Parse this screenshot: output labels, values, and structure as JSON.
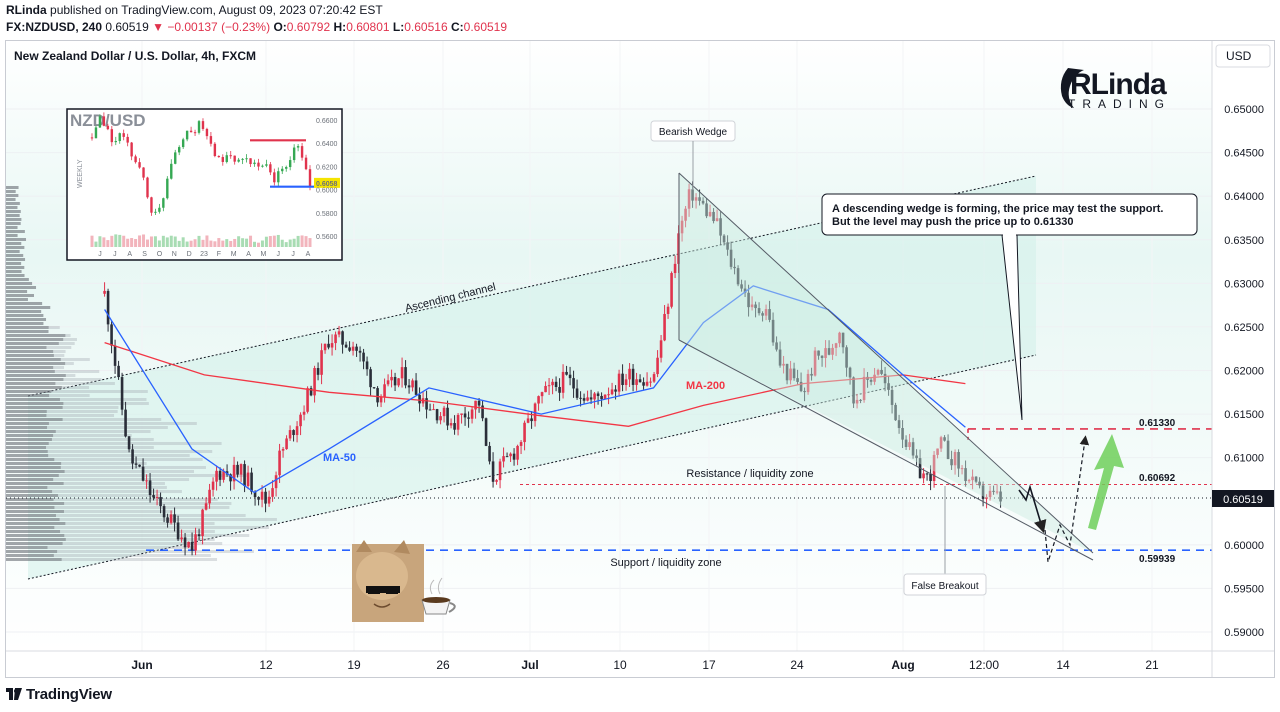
{
  "header": {
    "publisher": "RLinda",
    "published_text": "published on TradingView.com, August 09, 2023 07:20:42 EST",
    "symbol": "FX:NZDUSD, 240",
    "last": "0.60519",
    "change_arrow": "▼",
    "change": "−0.00137 (−0.23%)",
    "o_label": "O:",
    "o": "0.60792",
    "h_label": "H:",
    "h": "0.60801",
    "l_label": "L:",
    "l": "0.60516",
    "c_label": "C:",
    "c": "0.60519"
  },
  "footer": {
    "brand": "TradingView"
  },
  "colors": {
    "bull": "#e0334d",
    "bear": "#2a2e39",
    "ma50": "#2962ff",
    "ma200": "#f23645",
    "channel_fill": "#d5f2ec",
    "support": "#2962ff",
    "resistance": "#e0334d",
    "arrow": "#6ecf5a"
  },
  "chart_data": {
    "type": "candlestick",
    "title": "New Zealand Dollar / U.S. Dollar, 4h, FXCM",
    "currency_button": "USD",
    "x_tick_labels": [
      "Jun",
      "12",
      "19",
      "26",
      "Jul",
      "10",
      "17",
      "24",
      "Aug",
      "12:00",
      "14",
      "21"
    ],
    "y_tick_labels": [
      "0.65000",
      "0.64500",
      "0.64000",
      "0.63500",
      "0.63000",
      "0.62500",
      "0.62000",
      "0.61500",
      "0.61000",
      "0.60000",
      "0.59500",
      "0.59000"
    ],
    "ylim": [
      0.587,
      0.6535
    ],
    "price_marker": "0.60519",
    "close_path": [
      {
        "d": "May 29",
        "v": 0.6288
      },
      {
        "d": "May 31",
        "v": 0.61
      },
      {
        "d": "Jun 1",
        "v": 0.6078
      },
      {
        "d": "Jun 2",
        "v": 0.605
      },
      {
        "d": "Jun 5",
        "v": 0.5997
      },
      {
        "d": "Jun 6",
        "v": 0.6035
      },
      {
        "d": "Jun 7",
        "v": 0.6084
      },
      {
        "d": "Jun 9",
        "v": 0.6082
      },
      {
        "d": "Jun 11",
        "v": 0.6048
      },
      {
        "d": "Jun 12",
        "v": 0.61
      },
      {
        "d": "Jun 14",
        "v": 0.616
      },
      {
        "d": "Jun 16",
        "v": 0.6238
      },
      {
        "d": "Jun 18",
        "v": 0.623
      },
      {
        "d": "Jun 20",
        "v": 0.617
      },
      {
        "d": "Jun 22",
        "v": 0.6195
      },
      {
        "d": "Jun 24",
        "v": 0.616
      },
      {
        "d": "Jun 26",
        "v": 0.614
      },
      {
        "d": "Jun 28",
        "v": 0.6165
      },
      {
        "d": "Jun 29",
        "v": 0.6075
      },
      {
        "d": "Jul 1",
        "v": 0.611
      },
      {
        "d": "Jul 3",
        "v": 0.617
      },
      {
        "d": "Jul 5",
        "v": 0.619
      },
      {
        "d": "Jul 7",
        "v": 0.6165
      },
      {
        "d": "Jul 10",
        "v": 0.6195
      },
      {
        "d": "Jul 12",
        "v": 0.619
      },
      {
        "d": "Jul 13",
        "v": 0.6265
      },
      {
        "d": "Jul 14",
        "v": 0.6355
      },
      {
        "d": "Jul 15",
        "v": 0.6405
      },
      {
        "d": "Jul 17",
        "v": 0.637
      },
      {
        "d": "Jul 18",
        "v": 0.633
      },
      {
        "d": "Jul 19",
        "v": 0.63
      },
      {
        "d": "Jul 20",
        "v": 0.6265
      },
      {
        "d": "Jul 21",
        "v": 0.6275
      },
      {
        "d": "Jul 22",
        "v": 0.621
      },
      {
        "d": "Jul 24",
        "v": 0.6175
      },
      {
        "d": "Jul 25",
        "v": 0.6215
      },
      {
        "d": "Jul 26",
        "v": 0.622
      },
      {
        "d": "Jul 27",
        "v": 0.625
      },
      {
        "d": "Jul 28",
        "v": 0.6165
      },
      {
        "d": "Jul 30",
        "v": 0.6205
      },
      {
        "d": "Jul 31",
        "v": 0.6165
      },
      {
        "d": "Aug 2",
        "v": 0.609
      },
      {
        "d": "Aug 3",
        "v": 0.6075
      },
      {
        "d": "Aug 4",
        "v": 0.6115
      },
      {
        "d": "Aug 5",
        "v": 0.61
      },
      {
        "d": "Aug 7",
        "v": 0.606
      },
      {
        "d": "Aug 9",
        "v": 0.6052
      }
    ],
    "ma50": [
      {
        "d": "May 29",
        "v": 0.627
      },
      {
        "d": "Jun 5",
        "v": 0.611
      },
      {
        "d": "Jun 10",
        "v": 0.606
      },
      {
        "d": "Jun 16",
        "v": 0.611
      },
      {
        "d": "Jun 24",
        "v": 0.618
      },
      {
        "d": "Jul 3",
        "v": 0.615
      },
      {
        "d": "Jul 12",
        "v": 0.618
      },
      {
        "d": "Jul 16",
        "v": 0.6255
      },
      {
        "d": "Jul 20",
        "v": 0.6297
      },
      {
        "d": "Jul 26",
        "v": 0.627
      },
      {
        "d": "Aug 1",
        "v": 0.6195
      },
      {
        "d": "Aug 6",
        "v": 0.6135
      }
    ],
    "ma200": [
      {
        "d": "May 29",
        "v": 0.6232
      },
      {
        "d": "Jun 6",
        "v": 0.6195
      },
      {
        "d": "Jun 16",
        "v": 0.6175
      },
      {
        "d": "Jun 24",
        "v": 0.6165
      },
      {
        "d": "Jul 3",
        "v": 0.6148
      },
      {
        "d": "Jul 10",
        "v": 0.6136
      },
      {
        "d": "Jul 16",
        "v": 0.616
      },
      {
        "d": "Jul 24",
        "v": 0.6185
      },
      {
        "d": "Aug 1",
        "v": 0.6195
      },
      {
        "d": "Aug 6",
        "v": 0.6185
      }
    ],
    "levels": [
      {
        "name": "resistance",
        "value": 0.60692,
        "label": "0.60692"
      },
      {
        "name": "support",
        "value": 0.59939,
        "label": "0.59939"
      },
      {
        "name": "target",
        "value": 0.6133,
        "label": "0.61330"
      }
    ],
    "annotations": {
      "bearish_wedge": "Bearish Wedge",
      "ascending_channel": "Ascending channel",
      "ma50": "MA-50",
      "ma200": "MA-200",
      "resistance_zone": "Resistance / liquidity zone",
      "support_zone": "Support / liquidity zone",
      "false_breakout": "False Breakout",
      "callout_line1": "A descending wedge is forming, the price may test the support.",
      "callout_line2": "But the level may push the price up to 0.61330"
    },
    "logo": {
      "line1": "RLinda",
      "line2": "TRADING"
    },
    "inset": {
      "title": "NZD/USD",
      "side_label": "WEEKLY",
      "y_tick_labels": [
        "0.6600",
        "0.6400",
        "0.6200",
        "0.6058",
        "0.6000",
        "0.5800",
        "0.5600"
      ],
      "x_tick_labels": [
        "J",
        "J",
        "A",
        "S",
        "O",
        "N",
        "D",
        "23",
        "F",
        "M",
        "A",
        "M",
        "J",
        "J",
        "A"
      ],
      "close_path": [
        0.645,
        0.66,
        0.652,
        0.64,
        0.648,
        0.636,
        0.626,
        0.612,
        0.585,
        0.576,
        0.6,
        0.628,
        0.64,
        0.652,
        0.648,
        0.658,
        0.642,
        0.63,
        0.625,
        0.628,
        0.622,
        0.624,
        0.626,
        0.615,
        0.62,
        0.608,
        0.617,
        0.62,
        0.642,
        0.627,
        0.6058
      ]
    }
  }
}
